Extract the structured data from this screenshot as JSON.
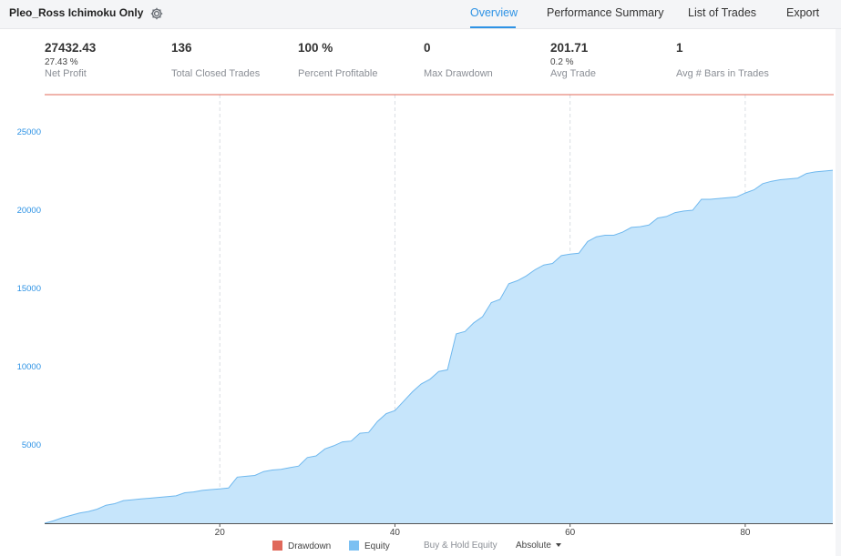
{
  "header": {
    "strategy_name": "Pleo_Ross Ichimoku Only",
    "tabs": [
      {
        "label": "Overview",
        "active": true
      },
      {
        "label": "Performance Summary",
        "active": false
      },
      {
        "label": "List of Trades",
        "active": false
      },
      {
        "label": "Export",
        "active": false
      }
    ]
  },
  "stats": [
    {
      "value": "27432.43",
      "sub": "27.43 %",
      "label": "Net Profit"
    },
    {
      "value": "136",
      "sub": "",
      "label": "Total Closed Trades"
    },
    {
      "value": "100 %",
      "sub": "",
      "label": "Percent Profitable"
    },
    {
      "value": "0",
      "sub": "",
      "label": "Max Drawdown"
    },
    {
      "value": "201.71",
      "sub": "0.2 %",
      "label": "Avg Trade"
    },
    {
      "value": "1",
      "sub": "",
      "label": "Avg # Bars in Trades"
    }
  ],
  "legend": {
    "drawdown_label": "Drawdown",
    "equity_label": "Equity",
    "buy_hold_label": "Buy & Hold Equity",
    "mode_label": "Absolute"
  },
  "colors": {
    "accent": "#2e93e5",
    "equity_fill": "#c6e5fb",
    "equity_line": "#6fb8ee",
    "drawdown": "#e0685a",
    "equity_swatch": "#7cc0f2"
  },
  "chart_data": {
    "type": "area",
    "series": [
      {
        "name": "Equity",
        "x": [
          0,
          1,
          2,
          3,
          4,
          5,
          6,
          7,
          8,
          9,
          10,
          11,
          12,
          13,
          14,
          15,
          16,
          17,
          18,
          19,
          20,
          21,
          22,
          23,
          24,
          25,
          26,
          27,
          28,
          29,
          30,
          31,
          32,
          33,
          34,
          35,
          36,
          37,
          38,
          39,
          40,
          41,
          42,
          43,
          44,
          45,
          46,
          47,
          48,
          49,
          50,
          51,
          52,
          53,
          54,
          55,
          56,
          57,
          58,
          59,
          60,
          61,
          62,
          63,
          64,
          65,
          66,
          67,
          68,
          69,
          70,
          71,
          72,
          73,
          74,
          75,
          76,
          77,
          78,
          79,
          80,
          81,
          82,
          83,
          84,
          85,
          86,
          87,
          88,
          89,
          90
        ],
        "values": [
          0,
          150,
          350,
          500,
          650,
          750,
          900,
          1150,
          1250,
          1450,
          1500,
          1550,
          1600,
          1650,
          1700,
          1750,
          1950,
          2000,
          2100,
          2150,
          2200,
          2250,
          2950,
          3000,
          3050,
          3300,
          3400,
          3450,
          3550,
          3650,
          4200,
          4300,
          4750,
          4950,
          5200,
          5250,
          5750,
          5800,
          6500,
          7000,
          7200,
          7800,
          8400,
          8900,
          9200,
          9700,
          9800,
          12100,
          12250,
          12800,
          13200,
          14100,
          14300,
          15300,
          15500,
          15800,
          16200,
          16500,
          16600,
          17100,
          17200,
          17250,
          18000,
          18300,
          18400,
          18400,
          18600,
          18900,
          18950,
          19050,
          19500,
          19600,
          19850,
          19950,
          20000,
          20700,
          20700,
          20750,
          20800,
          20850,
          21100,
          21300,
          21700,
          21850,
          21950,
          22000,
          22050,
          22350,
          22450,
          22500,
          22550
        ]
      }
    ],
    "drawdown_baseline": 0,
    "xlabel": "",
    "ylabel": "",
    "xticks": [
      20,
      40,
      60,
      80
    ],
    "yticks": [
      5000,
      10000,
      15000,
      20000,
      25000
    ],
    "xlim": [
      0,
      90
    ],
    "ylim": [
      0,
      25000
    ],
    "grid": "vertical dashed",
    "legend_position": "bottom"
  }
}
